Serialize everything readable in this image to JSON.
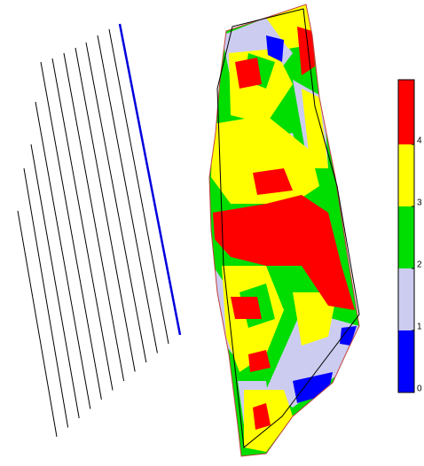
{
  "colorbar": {
    "ticks": [
      0,
      1,
      2,
      3,
      4
    ],
    "colors": [
      "#0000ff",
      "#ccccf0",
      "#00dd00",
      "#ffff00",
      "#ff0000"
    ]
  }
}
